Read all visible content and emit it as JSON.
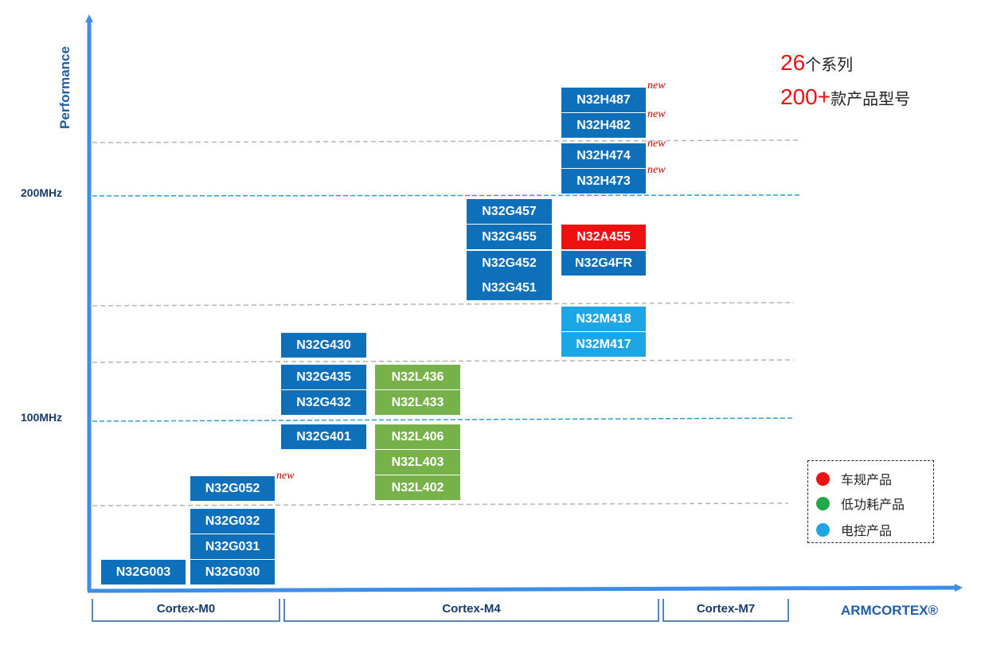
{
  "axes": {
    "y_title": "Performance",
    "x_title": "ARMCORTEX®"
  },
  "frequency_labels": [
    "200MHz",
    "100MHz"
  ],
  "cores": [
    "Cortex-M0",
    "Cortex-M4",
    "Cortex-M7"
  ],
  "summary": {
    "line1_num": "26",
    "line1_text": "个系列",
    "line2_num": "200+",
    "line2_text": "款产品型号"
  },
  "new_tag": "new",
  "products": {
    "n32g003": "N32G003",
    "n32g030": "N32G030",
    "n32g031": "N32G031",
    "n32g032": "N32G032",
    "n32g052": "N32G052",
    "n32g401": "N32G401",
    "n32g432": "N32G432",
    "n32g435": "N32G435",
    "n32g430": "N32G430",
    "n32l402": "N32L402",
    "n32l403": "N32L403",
    "n32l406": "N32L406",
    "n32l433": "N32L433",
    "n32l436": "N32L436",
    "n32g451": "N32G451",
    "n32g452": "N32G452",
    "n32g455": "N32G455",
    "n32g457": "N32G457",
    "n32m417": "N32M417",
    "n32m418": "N32M418",
    "n32g4fr": "N32G4FR",
    "n32a455": "N32A455",
    "n32h473": "N32H473",
    "n32h474": "N32H474",
    "n32h482": "N32H482",
    "n32h487": "N32H487"
  },
  "legend": [
    {
      "label": "车规产品",
      "color": "#ee1111"
    },
    {
      "label": "低功耗产品",
      "color": "#20a84a"
    },
    {
      "label": "电控产品",
      "color": "#1ca6e6"
    }
  ],
  "colors": {
    "standard": "#0e6fba",
    "low_power": "#77b14a",
    "automotive": "#ee1111",
    "motor_control": "#1ca6e6",
    "axis": "#3d8ee8"
  }
}
